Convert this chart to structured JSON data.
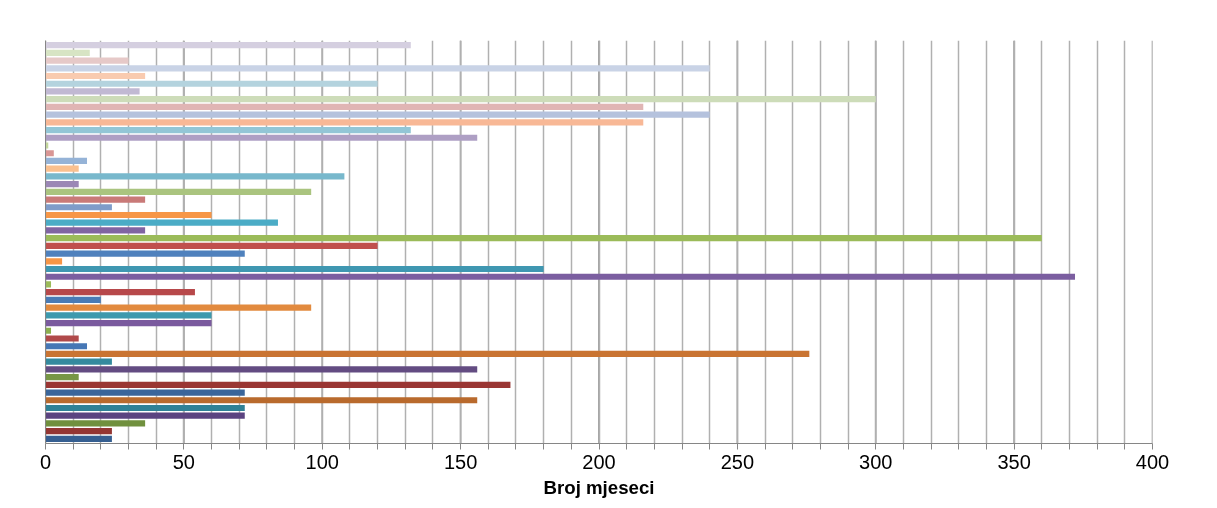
{
  "chart_data": {
    "type": "bar",
    "orientation": "horizontal",
    "xlabel": "Broj mjeseci",
    "categories": [
      null,
      null,
      null,
      null,
      null,
      null,
      null,
      null,
      null,
      null,
      null,
      null,
      null,
      null,
      null,
      null,
      null,
      null,
      null,
      null,
      null,
      null,
      null,
      null,
      null,
      null,
      null,
      null,
      null,
      null,
      null,
      null,
      null,
      null,
      null,
      null,
      null,
      null,
      null,
      null,
      null,
      null,
      null,
      null,
      null,
      null,
      null,
      null,
      null,
      null,
      null,
      null
    ],
    "values": [
      132,
      16,
      30,
      240,
      36,
      120,
      34,
      300,
      216,
      240,
      216,
      132,
      156,
      1,
      3,
      15,
      12,
      108,
      12,
      96,
      36,
      24,
      60,
      84,
      36,
      360,
      120,
      72,
      6,
      180,
      372,
      2,
      54,
      20,
      96,
      60,
      60,
      2,
      12,
      15,
      276,
      24,
      156,
      12,
      168,
      72,
      156,
      72,
      72,
      36,
      24,
      24
    ],
    "colors": [
      "#d5cfe0",
      "#d7e4c4",
      "#e6c9c8",
      "#c9d3e6",
      "#f9cbb0",
      "#b4d3de",
      "#c1b9d3",
      "#cddcb9",
      "#e0b5b4",
      "#b5c2dd",
      "#f8b896",
      "#93c6d6",
      "#ae9fc4",
      "#c2d69b",
      "#d99694",
      "#95b3d7",
      "#fac08f",
      "#78b8cc",
      "#9b87b5",
      "#aac47f",
      "#c97a78",
      "#7f9cc9",
      "#f79646",
      "#4bacc6",
      "#8064a2",
      "#9bbb59",
      "#c0504d",
      "#4f81bd",
      "#f79646",
      "#3f97b1",
      "#7b5ea0",
      "#9bbb59",
      "#b7484a",
      "#4a7bb5",
      "#e28a3e",
      "#3d99ad",
      "#7a5a9e",
      "#8caf4f",
      "#b0494a",
      "#4677b5",
      "#c97432",
      "#348a9e",
      "#634c82",
      "#779645",
      "#9a3633",
      "#3a659a",
      "#b96a2d",
      "#2f8196",
      "#5b4380",
      "#70903e",
      "#943532",
      "#365f91"
    ],
    "xlim": [
      0,
      400
    ],
    "xticks": [
      0,
      {
        "value": 10,
        "label": null
      },
      {
        "value": 20,
        "label": null
      },
      {
        "value": 30,
        "label": null
      },
      {
        "value": 40,
        "label": null
      },
      50,
      {
        "value": 60,
        "label": null
      },
      {
        "value": 70,
        "label": null
      },
      {
        "value": 80,
        "label": null
      },
      {
        "value": 90,
        "label": null
      },
      100,
      {
        "value": 110,
        "label": null
      },
      {
        "value": 120,
        "label": null
      },
      {
        "value": 130,
        "label": null
      },
      {
        "value": 140,
        "label": null
      },
      150,
      {
        "value": 160,
        "label": null
      },
      {
        "value": 170,
        "label": null
      },
      {
        "value": 180,
        "label": null
      },
      {
        "value": 190,
        "label": null
      },
      200,
      {
        "value": 210,
        "label": null
      },
      {
        "value": 220,
        "label": null
      },
      {
        "value": 230,
        "label": null
      },
      {
        "value": 240,
        "label": null
      },
      250,
      {
        "value": 260,
        "label": null
      },
      {
        "value": 270,
        "label": null
      },
      {
        "value": 280,
        "label": null
      },
      {
        "value": 290,
        "label": null
      },
      300,
      {
        "value": 310,
        "label": null
      },
      {
        "value": 320,
        "label": null
      },
      {
        "value": 330,
        "label": null
      },
      {
        "value": 340,
        "label": null
      },
      350,
      {
        "value": 360,
        "label": null
      },
      {
        "value": 370,
        "label": null
      },
      {
        "value": 380,
        "label": null
      },
      {
        "value": 390,
        "label": null
      },
      400
    ],
    "grid": "x"
  }
}
